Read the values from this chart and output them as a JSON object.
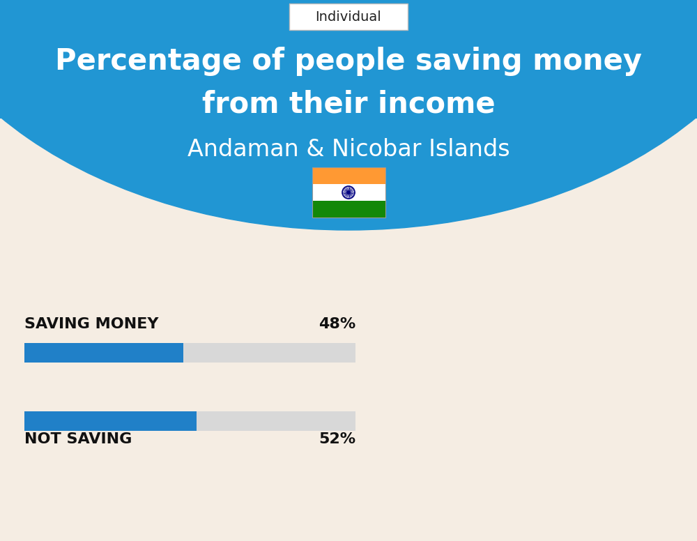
{
  "title_line1": "Percentage of people saving money",
  "title_line2": "from their income",
  "subtitle": "Andaman & Nicobar Islands",
  "tab_label": "Individual",
  "background_color": "#f5ede3",
  "header_color": "#2196d3",
  "bar_color": "#2080c8",
  "bar_bg_color": "#d8d8d8",
  "categories": [
    "SAVING MONEY",
    "NOT SAVING"
  ],
  "values": [
    48,
    52
  ],
  "value_labels": [
    "48%",
    "52%"
  ],
  "title_color": "#ffffff",
  "subtitle_color": "#ffffff",
  "label_color": "#111111",
  "tab_bg": "#ffffff",
  "tab_border": "#cccccc",
  "fig_width": 10.0,
  "fig_height": 7.76
}
